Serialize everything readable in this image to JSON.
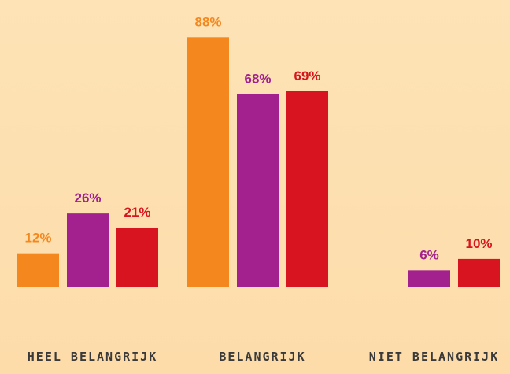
{
  "chart_data": {
    "type": "bar",
    "categories": [
      "HEEL BELANGRIJK",
      "BELANGRIJK",
      "NIET BELANGRIJK"
    ],
    "series": [
      {
        "color": "#f5871f",
        "values": [
          12,
          88,
          null
        ],
        "value_labels": [
          "12%",
          "88%",
          null
        ]
      },
      {
        "color": "#a3218e",
        "values": [
          26,
          68,
          6
        ],
        "value_labels": [
          "26%",
          "68%",
          "6%"
        ]
      },
      {
        "color": "#d7141f",
        "values": [
          21,
          69,
          10
        ],
        "value_labels": [
          "21%",
          "69%",
          "10%"
        ]
      }
    ]
  }
}
